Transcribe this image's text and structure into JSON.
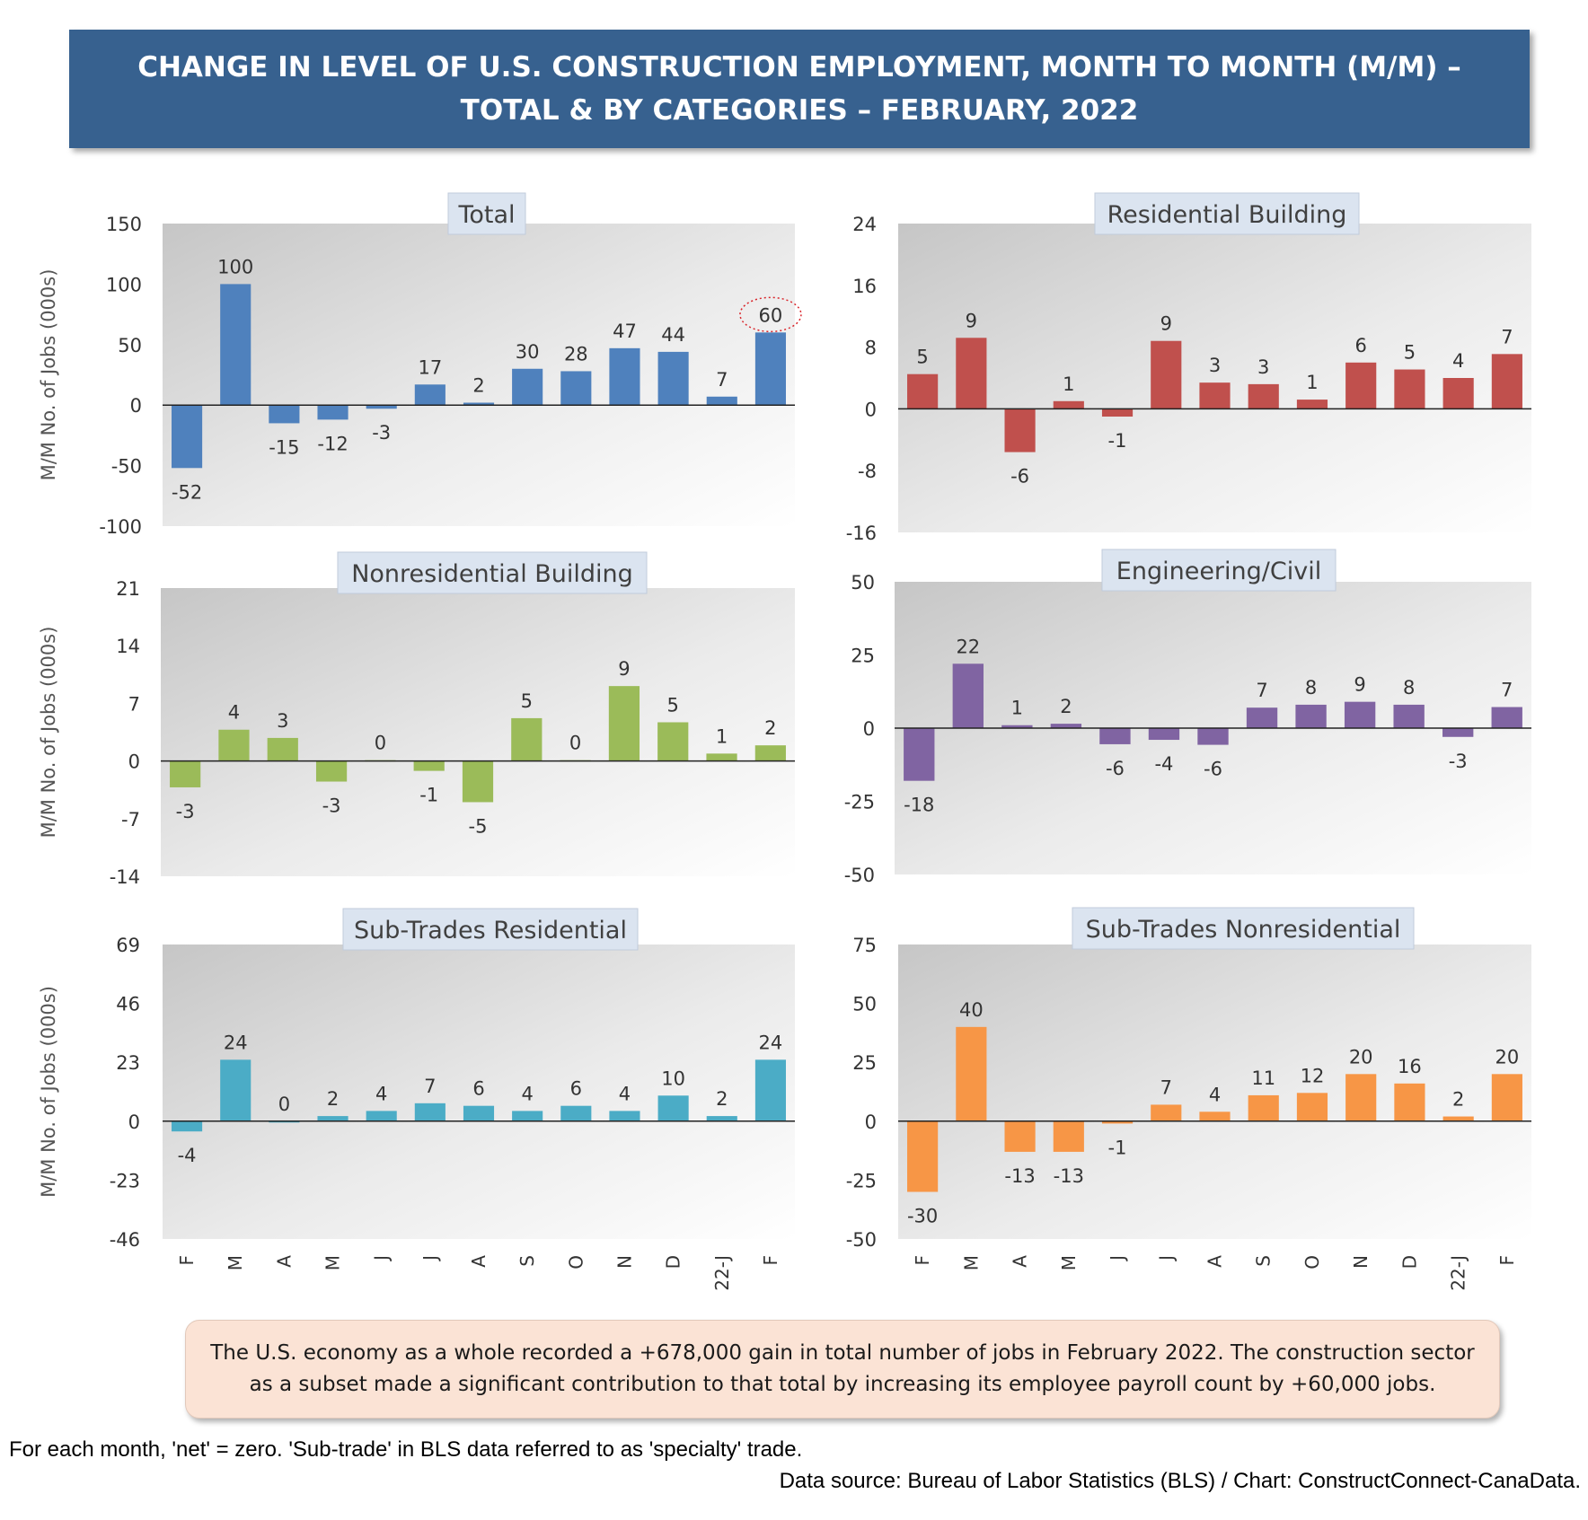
{
  "title": {
    "line1": "CHANGE IN LEVEL OF U.S. CONSTRUCTION EMPLOYMENT, MONTH TO MONTH (M/M) –",
    "line2": "TOTAL & BY CATEGORIES – FEBRUARY, 2022"
  },
  "note": "The U.S. economy as a whole recorded a +678,000 gain in total number of jobs in February 2022. The construction sector as a subset made a significant contribution to that total by increasing its employee payroll count by +60,000 jobs.",
  "footnote": "For each month, 'net' = zero. 'Sub-trade' in BLS data referred to as 'specialty' trade.",
  "source": "Data source: Bureau of Labor Statistics (BLS) / Chart: ConstructConnect-CanaData.",
  "colors": {
    "title_bg": "#37618f",
    "total": "#4f81bd",
    "residential": "#c0504d",
    "nonresidential": "#9bbb59",
    "engineering": "#8064a2",
    "subtrades_residential": "#4bacc6",
    "subtrades_nonresidential": "#f79646"
  },
  "chart_data": [
    {
      "type": "bar",
      "title": "Total",
      "ylabel": "M/M No. of Jobs (000s)",
      "categories": [
        "F",
        "M",
        "A",
        "M",
        "J",
        "J",
        "A",
        "S",
        "O",
        "N",
        "D",
        "22-J",
        "F"
      ],
      "values": [
        -52,
        100,
        -15,
        -12,
        -3,
        17,
        2,
        30,
        28,
        47,
        44,
        7,
        60
      ],
      "labels": [
        "-52",
        "100",
        "-15",
        "-12",
        "-3",
        "17",
        "2",
        "30",
        "28",
        "47",
        "44",
        "7",
        "60"
      ],
      "ylim": [
        -100,
        150
      ],
      "yticks": [
        150,
        100,
        50,
        0,
        -50,
        -100
      ],
      "color": "#4f81bd",
      "highlight_last": true
    },
    {
      "type": "bar",
      "title": "Residential Building",
      "ylabel": "",
      "categories": [
        "F",
        "M",
        "A",
        "M",
        "J",
        "J",
        "A",
        "S",
        "O",
        "N",
        "D",
        "22-J",
        "F"
      ],
      "values": [
        4.5,
        9.2,
        -5.6,
        1,
        -1,
        8.8,
        3.4,
        3.2,
        1.2,
        6,
        5.1,
        4,
        7.1
      ],
      "labels": [
        "5",
        "9",
        "-6",
        "1",
        "-1",
        "9",
        "3",
        "3",
        "1",
        "6",
        "5",
        "4",
        "7"
      ],
      "ylim": [
        -16,
        24
      ],
      "yticks": [
        24,
        16,
        8,
        0,
        -8,
        -16
      ],
      "color": "#c0504d"
    },
    {
      "type": "bar",
      "title": "Nonresidential Building",
      "ylabel": "M/M No. of Jobs (000s)",
      "categories": [
        "F",
        "M",
        "A",
        "M",
        "J",
        "J",
        "A",
        "S",
        "O",
        "N",
        "D",
        "22-J",
        "F"
      ],
      "values": [
        -3.2,
        3.8,
        2.8,
        -2.5,
        0.1,
        -1.2,
        -5,
        5.2,
        0.1,
        9.1,
        4.7,
        0.9,
        1.9
      ],
      "labels": [
        "-3",
        "4",
        "3",
        "-3",
        "0",
        "-1",
        "-5",
        "5",
        "0",
        "9",
        "5",
        "1",
        "2"
      ],
      "ylim": [
        -14,
        21
      ],
      "yticks": [
        21,
        14,
        7,
        0,
        -7,
        -14
      ],
      "color": "#9bbb59"
    },
    {
      "type": "bar",
      "title": "Engineering/Civil",
      "ylabel": "",
      "categories": [
        "F",
        "M",
        "A",
        "M",
        "J",
        "J",
        "A",
        "S",
        "O",
        "N",
        "D",
        "22-J",
        "F"
      ],
      "values": [
        -18,
        22,
        1,
        1.5,
        -5.5,
        -4,
        -5.7,
        7,
        8,
        9,
        8,
        -3,
        7.2
      ],
      "labels": [
        "-18",
        "22",
        "1",
        "2",
        "-6",
        "-4",
        "-6",
        "7",
        "8",
        "9",
        "8",
        "-3",
        "7"
      ],
      "ylim": [
        -50,
        50
      ],
      "yticks": [
        50,
        25,
        0,
        -25,
        -50
      ],
      "color": "#8064a2"
    },
    {
      "type": "bar",
      "title": "Sub-Trades Residential",
      "ylabel": "M/M No. of Jobs (000s)",
      "categories": [
        "F",
        "M",
        "A",
        "M",
        "J",
        "J",
        "A",
        "S",
        "O",
        "N",
        "D",
        "22-J",
        "F"
      ],
      "values": [
        -4,
        24,
        0,
        2,
        4,
        7,
        6,
        4,
        6,
        4,
        10,
        2,
        24
      ],
      "labels": [
        "-4",
        "24",
        "0",
        "2",
        "4",
        "7",
        "6",
        "4",
        "6",
        "4",
        "10",
        "2",
        "24"
      ],
      "ylim": [
        -46,
        69
      ],
      "yticks": [
        69,
        46,
        23,
        0,
        -23,
        -46
      ],
      "color": "#4bacc6"
    },
    {
      "type": "bar",
      "title": "Sub-Trades Nonresidential",
      "ylabel": "",
      "categories": [
        "F",
        "M",
        "A",
        "M",
        "J",
        "J",
        "A",
        "S",
        "O",
        "N",
        "D",
        "22-J",
        "F"
      ],
      "values": [
        -30,
        40,
        -13,
        -13,
        -1,
        7,
        4,
        11,
        12,
        20,
        16,
        2,
        20
      ],
      "labels": [
        "-30",
        "40",
        "-13",
        "-13",
        "-1",
        "7",
        "4",
        "11",
        "12",
        "20",
        "16",
        "2",
        "20"
      ],
      "ylim": [
        -50,
        75
      ],
      "yticks": [
        75,
        50,
        25,
        0,
        -25,
        -50
      ],
      "color": "#f79646"
    }
  ]
}
